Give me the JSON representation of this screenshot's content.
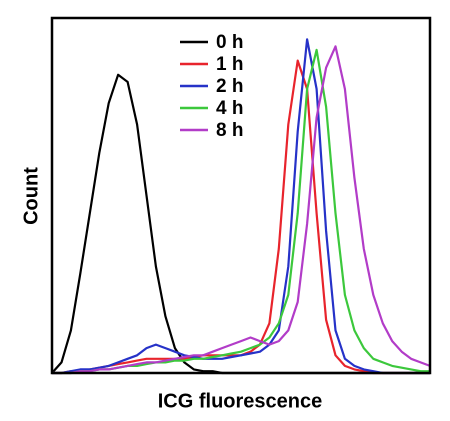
{
  "chart_data": {
    "type": "line",
    "xlabel": "ICG fluorescence",
    "ylabel": "Count",
    "xlim": [
      0,
      100
    ],
    "ylim": [
      0,
      100
    ],
    "legend": "upper center",
    "x": [
      0,
      2.5,
      5,
      7.5,
      10,
      12.5,
      15,
      17.5,
      20,
      22.5,
      25,
      27.5,
      30,
      32.5,
      35,
      37.5,
      40,
      42.5,
      45,
      47.5,
      50,
      52.5,
      55,
      57.5,
      60,
      62.5,
      65,
      67.5,
      70,
      72.5,
      75,
      77.5,
      80,
      82.5,
      85,
      87.5,
      90,
      92.5,
      95,
      97.5,
      100
    ],
    "series": [
      {
        "name": "0 h",
        "color": "#000000",
        "values": [
          0,
          3,
          12,
          28,
          45,
          62,
          76,
          84,
          82,
          70,
          50,
          30,
          16,
          7,
          3,
          1,
          0.5,
          0.5,
          0,
          0,
          0,
          0,
          0,
          0,
          0,
          0,
          0,
          0,
          0,
          0,
          0,
          0,
          0,
          0,
          0,
          0,
          0,
          0,
          0,
          0,
          0
        ]
      },
      {
        "name": "1 h",
        "color": "#e8242c",
        "values": [
          0,
          0,
          0.5,
          0.5,
          1,
          1.5,
          2,
          2.5,
          3,
          3.5,
          4,
          4,
          4,
          4,
          4,
          4.5,
          5,
          5,
          5,
          5,
          5,
          6,
          8,
          14,
          35,
          70,
          88,
          80,
          45,
          15,
          5,
          2,
          1,
          0.5,
          0,
          0,
          0,
          0,
          0,
          0,
          0
        ]
      },
      {
        "name": "2 h",
        "color": "#2632c8",
        "values": [
          0,
          0,
          0.5,
          1,
          1,
          1.5,
          2,
          3,
          4,
          5,
          7,
          8,
          7,
          6,
          5,
          4.5,
          4,
          4,
          4,
          4.5,
          5,
          5.5,
          6,
          8,
          12,
          30,
          68,
          94,
          80,
          40,
          12,
          4,
          2,
          1,
          0.5,
          0,
          0,
          0,
          0,
          0,
          0
        ]
      },
      {
        "name": "4 h",
        "color": "#3cc83c",
        "values": [
          0,
          0,
          0,
          0.5,
          0.5,
          1,
          1,
          1.5,
          2,
          2,
          2.5,
          3,
          3,
          3.5,
          3.5,
          4,
          4,
          4.5,
          5,
          5.5,
          6,
          7,
          8,
          10,
          14,
          22,
          45,
          80,
          91,
          75,
          45,
          22,
          12,
          7,
          4,
          3,
          2,
          1.5,
          1,
          0.5,
          0.5
        ]
      },
      {
        "name": "8 h",
        "color": "#b23cc8",
        "values": [
          0,
          0,
          0,
          0.5,
          0.5,
          1,
          1,
          1.5,
          2,
          2.5,
          3,
          3,
          3.5,
          4,
          4.5,
          5,
          5,
          6,
          7,
          8,
          9,
          10,
          9,
          8,
          9,
          12,
          20,
          42,
          72,
          86,
          92,
          80,
          55,
          35,
          22,
          14,
          9,
          6,
          4,
          3,
          2
        ]
      }
    ]
  }
}
